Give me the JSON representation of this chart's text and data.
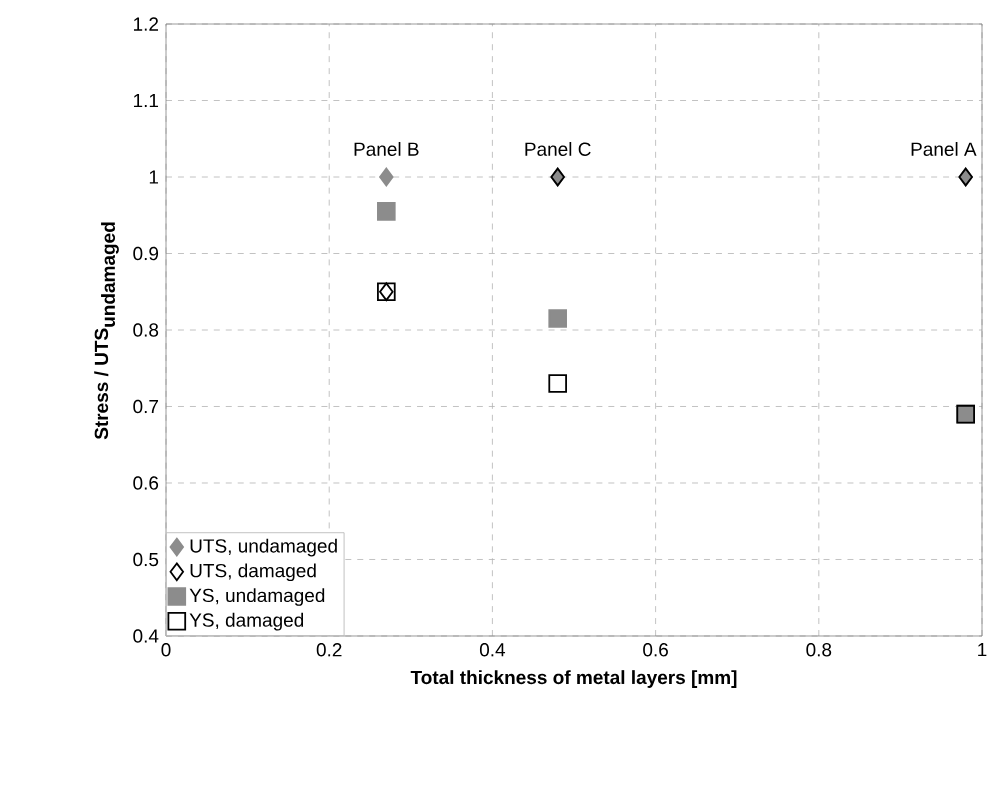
{
  "chart_data": {
    "type": "scatter",
    "xlabel": "Total thickness of metal layers [mm]",
    "ylabel": "\\textbf{Stress / UTS}_{\\textbf{undamaged}}",
    "x": [
      0.27,
      0.48,
      0.98
    ],
    "series": [
      {
        "name": "UTS, undamaged",
        "color": "#8c8c8c",
        "marker": "diamond",
        "values": [
          1.0,
          1.0,
          1.0
        ]
      },
      {
        "name": "UTS, damaged",
        "color": "#000000",
        "marker": "diamond",
        "values": [
          0.85,
          1.0,
          1.0
        ]
      },
      {
        "name": "YS, undamaged",
        "color": "#8c8c8c",
        "marker": "square",
        "values": [
          0.955,
          0.815,
          0.69
        ]
      },
      {
        "name": "YS, damaged",
        "color": "#000000",
        "marker": "square",
        "values": [
          0.85,
          0.73,
          0.69
        ]
      }
    ],
    "annotations": [
      {
        "text": "Panel B",
        "x": 0.27,
        "y": 1.0
      },
      {
        "text": "Panel C",
        "x": 0.48,
        "y": 1.0
      },
      {
        "text": "Panel A",
        "x": 0.98,
        "y": 1.0
      }
    ],
    "xlim": [
      0,
      1
    ],
    "ylim": [
      0.4,
      1.2
    ],
    "xticks": [
      0,
      0.2,
      0.4,
      0.6,
      0.8,
      1
    ],
    "yticks": [
      0.4,
      0.5,
      0.6,
      0.7,
      0.8,
      0.9,
      1,
      1.1,
      1.2
    ],
    "grid": true,
    "legend": "bottom left"
  }
}
